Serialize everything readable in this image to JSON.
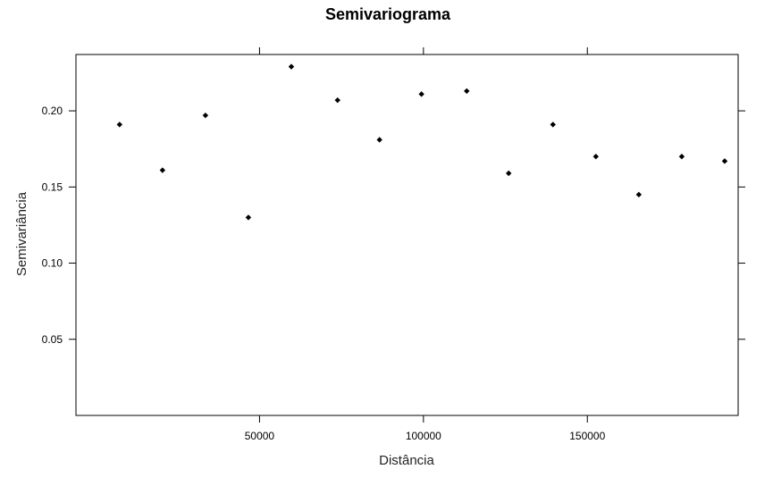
{
  "chart_data": {
    "type": "scatter",
    "title": "Semivariograma",
    "xlabel": "Distância",
    "ylabel": "Semivariância",
    "xlim": [
      -6000,
      196000
    ],
    "ylim": [
      0.0,
      0.237
    ],
    "x_ticks": [
      50000,
      100000,
      150000
    ],
    "x_tick_labels": [
      "50000",
      "100000",
      "150000"
    ],
    "y_ticks": [
      0.05,
      0.1,
      0.15,
      0.2
    ],
    "y_tick_labels": [
      "0.05",
      "0.10",
      "0.15",
      "0.20"
    ],
    "grid": false,
    "marker_color": "#000000",
    "points": [
      {
        "x": 7300,
        "y": 0.191
      },
      {
        "x": 20400,
        "y": 0.161
      },
      {
        "x": 33500,
        "y": 0.197
      },
      {
        "x": 46600,
        "y": 0.13
      },
      {
        "x": 59700,
        "y": 0.229
      },
      {
        "x": 73800,
        "y": 0.207
      },
      {
        "x": 86600,
        "y": 0.181
      },
      {
        "x": 99400,
        "y": 0.211
      },
      {
        "x": 113200,
        "y": 0.213
      },
      {
        "x": 126000,
        "y": 0.159
      },
      {
        "x": 139500,
        "y": 0.191
      },
      {
        "x": 152600,
        "y": 0.17
      },
      {
        "x": 165700,
        "y": 0.145
      },
      {
        "x": 178800,
        "y": 0.17
      },
      {
        "x": 191900,
        "y": 0.167
      }
    ]
  }
}
